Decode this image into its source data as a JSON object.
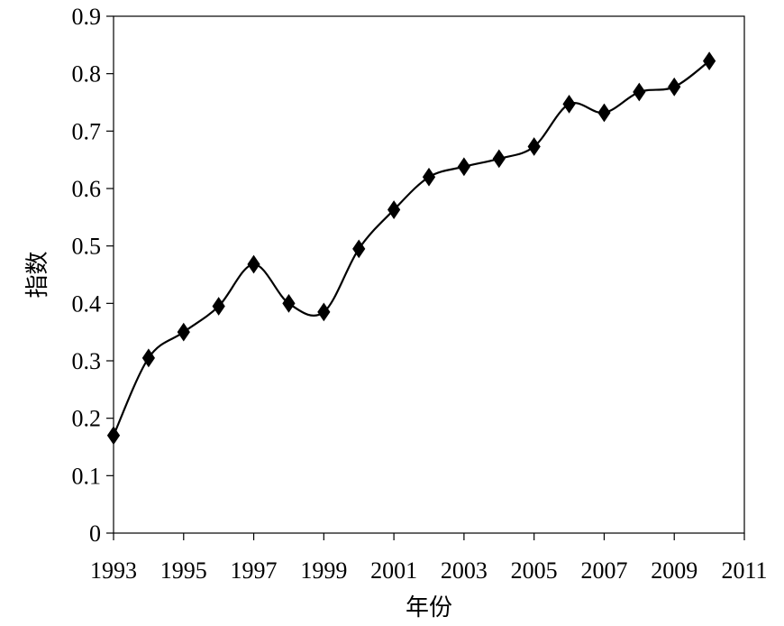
{
  "chart_data": {
    "type": "line",
    "title": "",
    "xlabel": "年份",
    "ylabel": "指数",
    "xlim": [
      1993,
      2011
    ],
    "ylim": [
      0,
      0.9
    ],
    "x_ticks": [
      "1993",
      "1995",
      "1997",
      "1999",
      "2001",
      "2003",
      "2005",
      "2007",
      "2009",
      "2011"
    ],
    "y_ticks": [
      "0",
      "0.1",
      "0.2",
      "0.3",
      "0.4",
      "0.5",
      "0.6",
      "0.7",
      "0.8",
      "0.9"
    ],
    "grid": false,
    "legend": "none",
    "marker": "diamond",
    "smooth": true,
    "line_color": "#000000",
    "series": [
      {
        "x": [
          1993,
          1994,
          1995,
          1996,
          1997,
          1998,
          1999,
          2000,
          2001,
          2002,
          2003,
          2004,
          2005,
          2006,
          2007,
          2008,
          2009,
          2010
        ],
        "values": [
          0.17,
          0.305,
          0.35,
          0.395,
          0.468,
          0.4,
          0.385,
          0.495,
          0.563,
          0.62,
          0.638,
          0.652,
          0.673,
          0.747,
          0.732,
          0.768,
          0.777,
          0.822
        ]
      }
    ]
  }
}
